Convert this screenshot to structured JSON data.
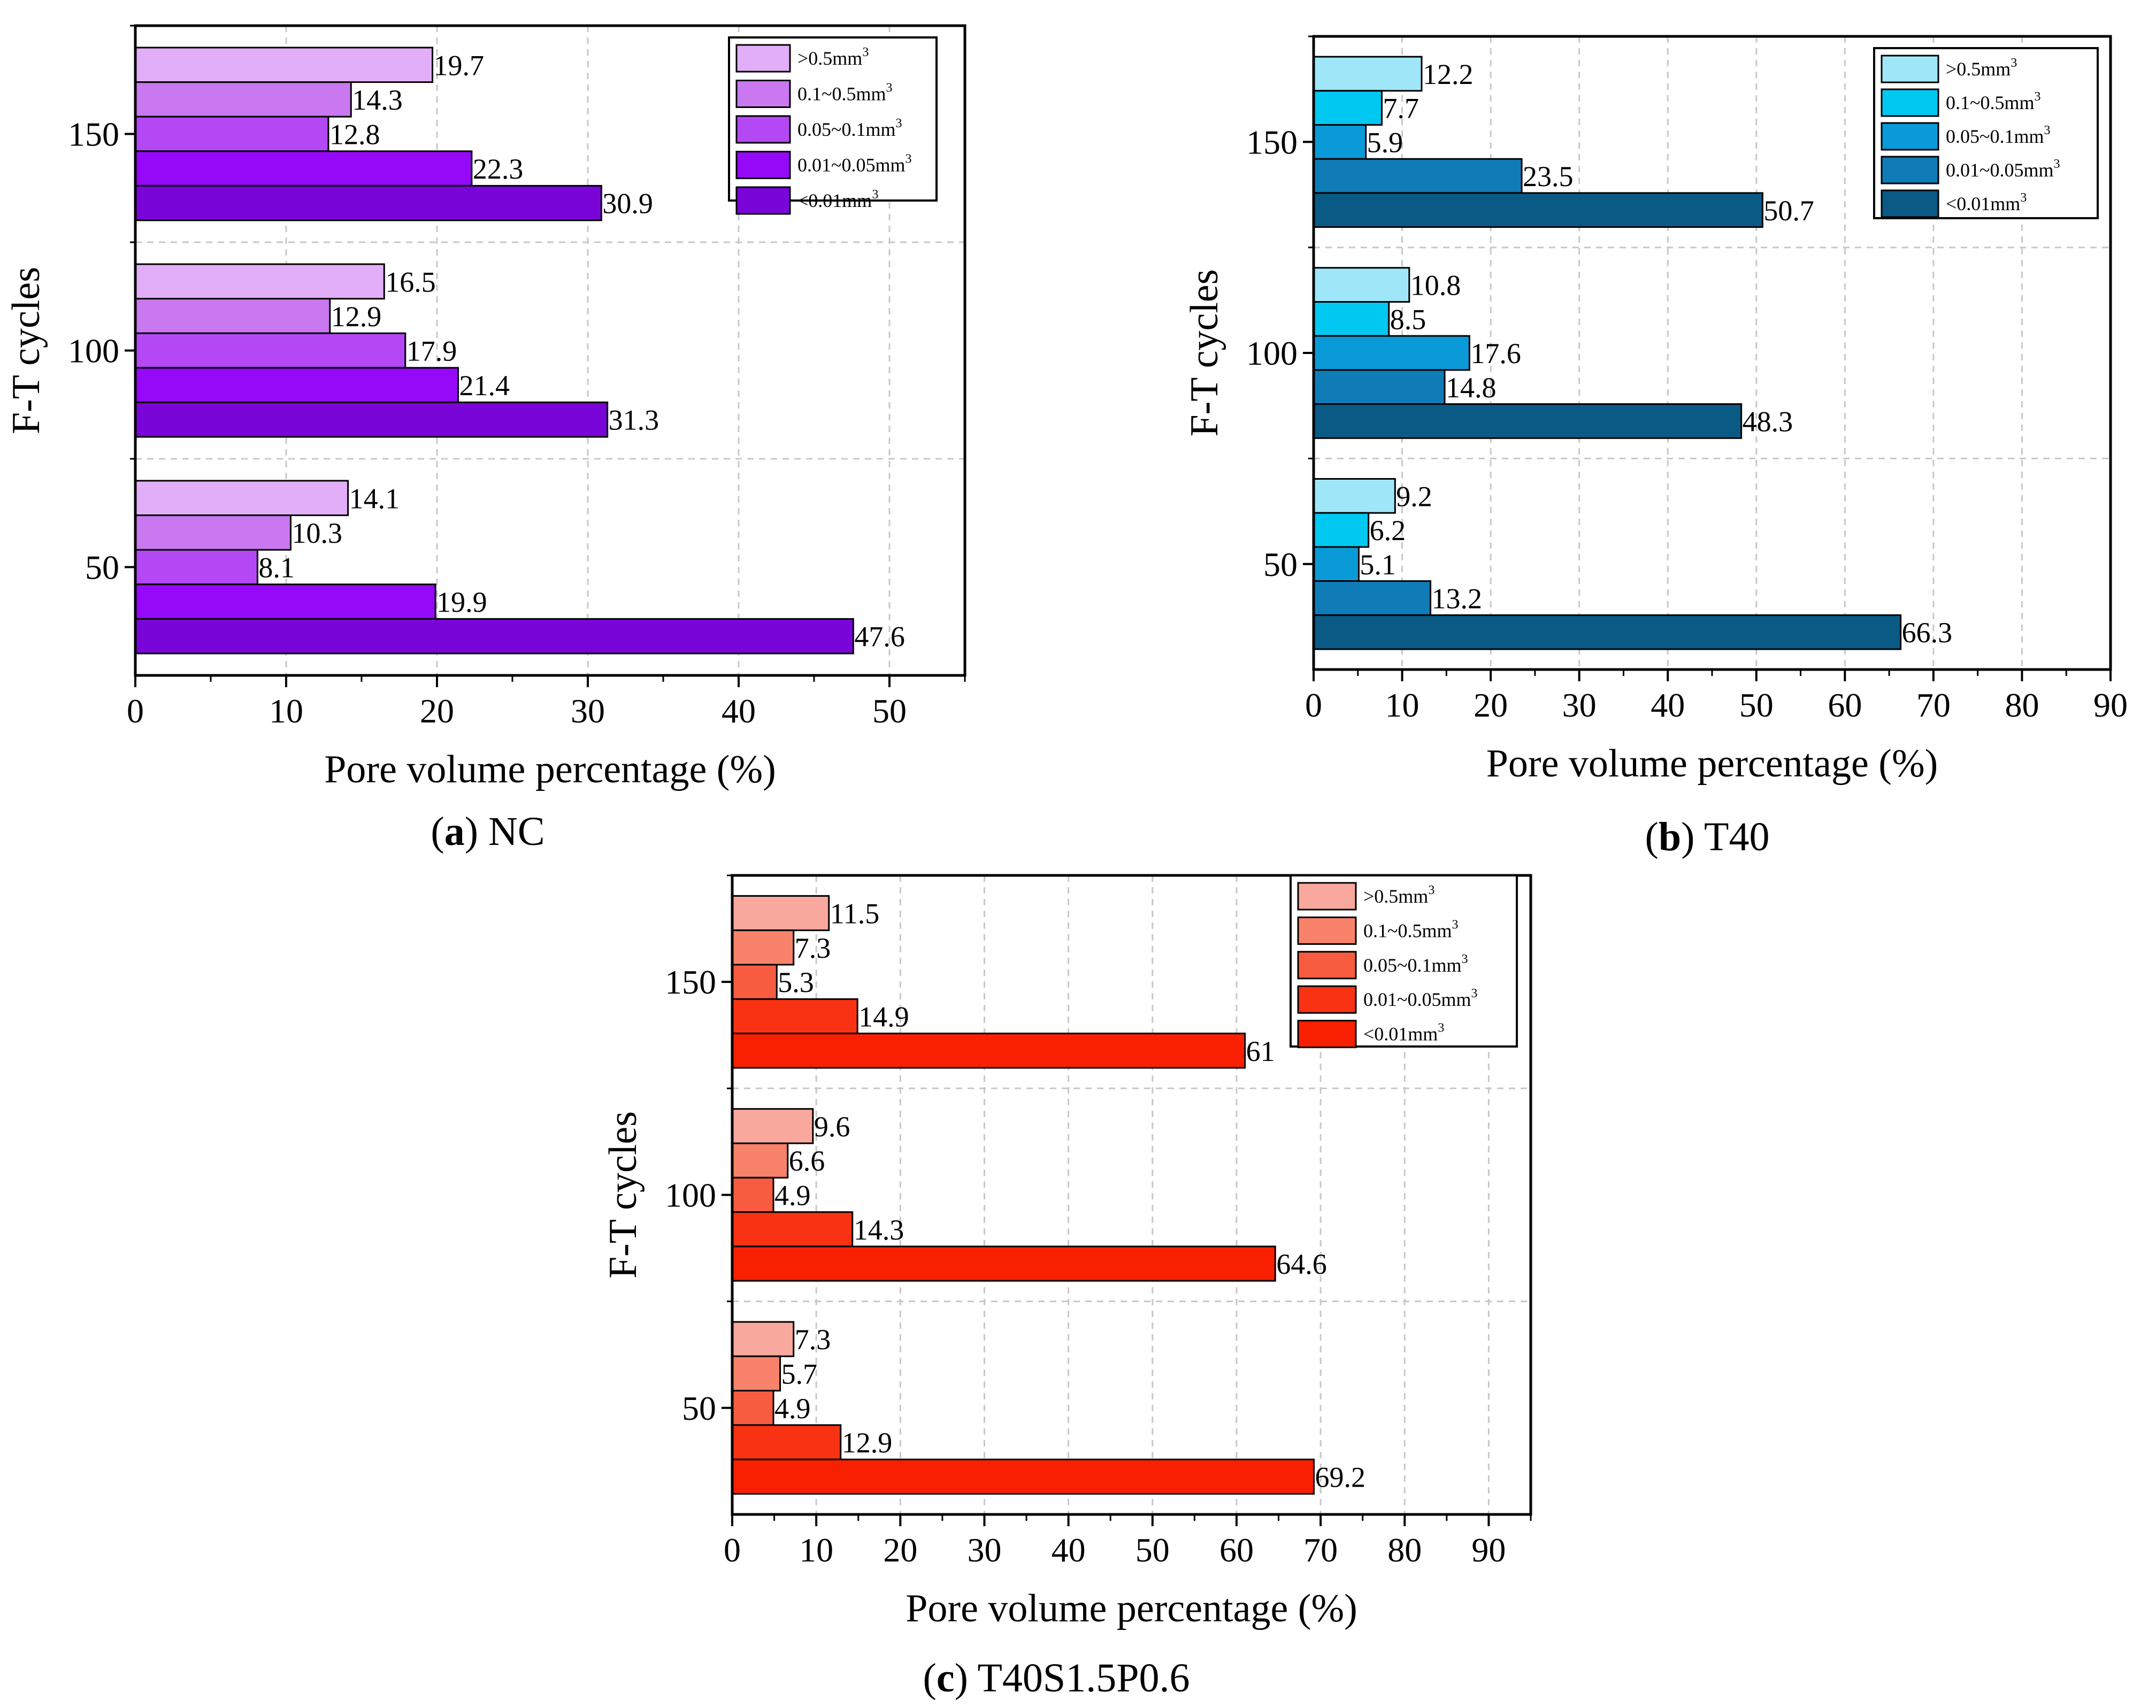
{
  "chart_data": [
    {
      "id": "nc",
      "type": "bar",
      "orientation": "horizontal",
      "caption_letter": "a",
      "caption_name": " NC",
      "xlabel": "Pore volume percentage (%)",
      "ylabel": "F-T cycles",
      "xlim": [
        0,
        55
      ],
      "xticks": [
        0,
        10,
        20,
        30,
        40,
        50
      ],
      "categories": [
        "150",
        "100",
        "50"
      ],
      "series": [
        {
          "name": ">0.5mm",
          "sup": "3",
          "color": "#e2aef8",
          "values": [
            19.7,
            16.5,
            14.1
          ]
        },
        {
          "name": "0.1~0.5mm",
          "sup": "3",
          "color": "#c978f0",
          "values": [
            14.3,
            12.9,
            10.3
          ]
        },
        {
          "name": "0.05~0.1mm",
          "sup": "3",
          "color": "#b448f5",
          "values": [
            12.8,
            17.9,
            8.1
          ]
        },
        {
          "name": "0.01~0.05mm",
          "sup": "3",
          "color": "#9608f8",
          "values": [
            22.3,
            21.4,
            19.9
          ]
        },
        {
          "name": "<0.01mm",
          "sup": "3",
          "color": "#7a05d8",
          "values": [
            30.9,
            31.3,
            47.6
          ]
        }
      ],
      "data_labels": [
        [
          "19.7",
          "14.3",
          "12.8",
          "22.3",
          "30.9"
        ],
        [
          "16.5",
          "12.9",
          "17.9",
          "21.4",
          "31.3"
        ],
        [
          "14.1",
          "10.3",
          "8.1",
          "19.9",
          "47.6"
        ]
      ]
    },
    {
      "id": "t40",
      "type": "bar",
      "orientation": "horizontal",
      "caption_letter": "b",
      "caption_name": " T40",
      "xlabel": "Pore volume percentage (%)",
      "ylabel": "F-T cycles",
      "xlim": [
        0,
        90
      ],
      "xticks": [
        0,
        10,
        20,
        30,
        40,
        50,
        60,
        70,
        80,
        90
      ],
      "categories": [
        "150",
        "100",
        "50"
      ],
      "series": [
        {
          "name": ">0.5mm",
          "sup": "3",
          "color": "#9fe6f8",
          "values": [
            12.2,
            10.8,
            9.2
          ]
        },
        {
          "name": "0.1~0.5mm",
          "sup": "3",
          "color": "#00c8f0",
          "values": [
            7.7,
            8.5,
            6.2
          ]
        },
        {
          "name": "0.05~0.1mm",
          "sup": "3",
          "color": "#0a9ad8",
          "values": [
            5.9,
            17.6,
            5.1
          ]
        },
        {
          "name": "0.01~0.05mm",
          "sup": "3",
          "color": "#0f7cb8",
          "values": [
            23.5,
            14.8,
            13.2
          ]
        },
        {
          "name": "<0.01mm",
          "sup": "3",
          "color": "#0a5a86",
          "values": [
            50.7,
            48.3,
            66.3
          ]
        }
      ],
      "data_labels": [
        [
          "12.2",
          "7.7",
          "5.9",
          "23.5",
          "50.7"
        ],
        [
          "10.8",
          "8.5",
          "17.6",
          "14.8",
          "48.3"
        ],
        [
          "9.2",
          "6.2",
          "5.1",
          "13.2",
          "66.3"
        ]
      ]
    },
    {
      "id": "t40s",
      "type": "bar",
      "orientation": "horizontal",
      "caption_letter": "c",
      "caption_name": " T40S1.5P0.6",
      "xlabel": "Pore volume percentage (%)",
      "ylabel": "F-T cycles",
      "xlim": [
        0,
        95
      ],
      "xticks": [
        0,
        10,
        20,
        30,
        40,
        50,
        60,
        70,
        80,
        90
      ],
      "categories": [
        "150",
        "100",
        "50"
      ],
      "series": [
        {
          "name": ">0.5mm",
          "sup": "3",
          "color": "#f8a89c",
          "values": [
            11.5,
            9.6,
            7.3
          ]
        },
        {
          "name": "0.1~0.5mm",
          "sup": "3",
          "color": "#f8826a",
          "values": [
            7.3,
            6.6,
            5.7
          ]
        },
        {
          "name": "0.05~0.1mm",
          "sup": "3",
          "color": "#f85c40",
          "values": [
            5.3,
            4.9,
            4.9
          ]
        },
        {
          "name": "0.01~0.05mm",
          "sup": "3",
          "color": "#f83212",
          "values": [
            14.9,
            14.3,
            12.9
          ]
        },
        {
          "name": "<0.01mm",
          "sup": "3",
          "color": "#f82000",
          "values": [
            61,
            64.6,
            69.2
          ]
        }
      ],
      "data_labels": [
        [
          "11.5",
          "7.3",
          "5.3",
          "14.9",
          "61"
        ],
        [
          "9.6",
          "6.6",
          "4.9",
          "14.3",
          "64.6"
        ],
        [
          "7.3",
          "5.7",
          "4.9",
          "12.9",
          "69.2"
        ]
      ]
    }
  ]
}
